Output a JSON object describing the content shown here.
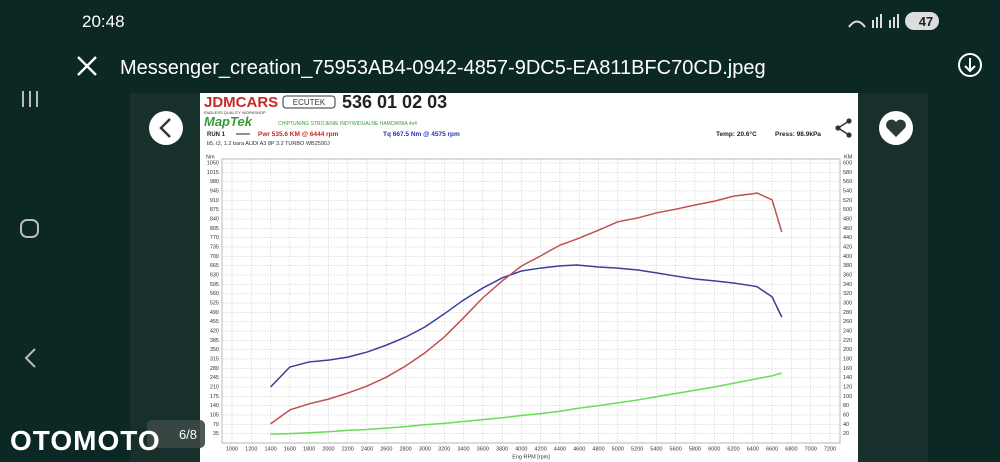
{
  "status_bar": {
    "time": "20:48",
    "battery": "47"
  },
  "header": {
    "title": "Messenger_creation_75953AB4-0942-4857-9DC5-EA811BFC70CD.jpeg"
  },
  "viewer": {
    "counter": "6/8",
    "watermark": "OTOMOTO"
  },
  "dyno_sheet": {
    "logo": "JDMCARS",
    "logo_tagline": "ENDLESS QUALITY WORKSHOP",
    "partner": "ECUTEK",
    "phone": "536 01 02 03",
    "brand": "MapTek",
    "brand_tagline": "CHIPTUNING STROJENIE INDYWIDUALNE HAMOWNIA 4x4",
    "run": "RUN 1",
    "temp": "Temp: 20.6°C",
    "press": "Press: 98.9kPa",
    "description": "b5, t2, 1.2 bara AUDI A3 8P 3.2 TURBO WB2590J"
  },
  "chart_data": {
    "type": "line",
    "annotations": [
      {
        "text": "Pwr  535.6 KM @ 6444 rpm",
        "color": "#d02020"
      },
      {
        "text": "Tq  667.5 Nm @ 4575 rpm",
        "color": "#2030c0"
      }
    ],
    "xlabel": "Eng RPM [rpm]",
    "ylabel": "Nm",
    "y2label": "KM",
    "x": [
      1400,
      1600,
      1800,
      2000,
      2200,
      2400,
      2600,
      2800,
      3000,
      3200,
      3400,
      3600,
      3800,
      4000,
      4200,
      4400,
      4575,
      4800,
      5000,
      5200,
      5400,
      5600,
      5800,
      6000,
      6200,
      6400,
      6444,
      6600,
      6700
    ],
    "series": [
      {
        "color": "#3a3f9a",
        "axis": "y",
        "values": [
          210,
          285,
          304,
          311,
          322,
          341,
          367,
          397,
          435,
          484,
          536,
          581,
          619,
          645,
          656,
          664,
          667.5,
          660,
          656,
          649,
          638,
          626,
          615,
          608,
          600,
          589,
          586,
          548,
          472
        ]
      },
      {
        "color": "#c0504d",
        "axis": "y2",
        "values": [
          41,
          71,
          84,
          94,
          107,
          122,
          141,
          165,
          193,
          227,
          268,
          311,
          347,
          379,
          401,
          424,
          437,
          456,
          474,
          482,
          493,
          501,
          510,
          518,
          529,
          534,
          535.6,
          521,
          452
        ]
      },
      {
        "color": "#66dd55",
        "axis": "y2",
        "values": [
          19,
          20,
          22,
          24,
          27,
          29,
          32,
          35,
          39,
          42,
          46,
          50,
          54,
          59,
          63,
          68,
          74,
          80,
          86,
          92,
          99,
          106,
          113,
          120,
          128,
          136,
          138,
          144,
          150
        ]
      }
    ],
    "xlim": [
      1000,
      7200
    ],
    "xticks": [
      1000,
      1200,
      1400,
      1600,
      1800,
      2000,
      2200,
      2400,
      2600,
      2800,
      3000,
      3200,
      3400,
      3600,
      3800,
      4000,
      4200,
      4400,
      4600,
      4800,
      5000,
      5200,
      5400,
      5600,
      5800,
      6000,
      6200,
      6400,
      6600,
      6800,
      7000,
      7200
    ],
    "ylim": [
      0,
      1050
    ],
    "yticks": [
      35,
      70,
      105,
      140,
      175,
      210,
      245,
      280,
      315,
      350,
      385,
      420,
      455,
      490,
      525,
      560,
      595,
      630,
      665,
      700,
      735,
      770,
      805,
      840,
      875,
      910,
      945,
      980,
      1015,
      1050
    ],
    "y2lim": [
      0,
      600
    ],
    "y2ticks": [
      20,
      40,
      60,
      80,
      100,
      120,
      140,
      160,
      180,
      200,
      220,
      240,
      260,
      280,
      300,
      320,
      340,
      360,
      380,
      400,
      420,
      440,
      460,
      480,
      500,
      520,
      540,
      560,
      580,
      600
    ],
    "grid": true
  }
}
